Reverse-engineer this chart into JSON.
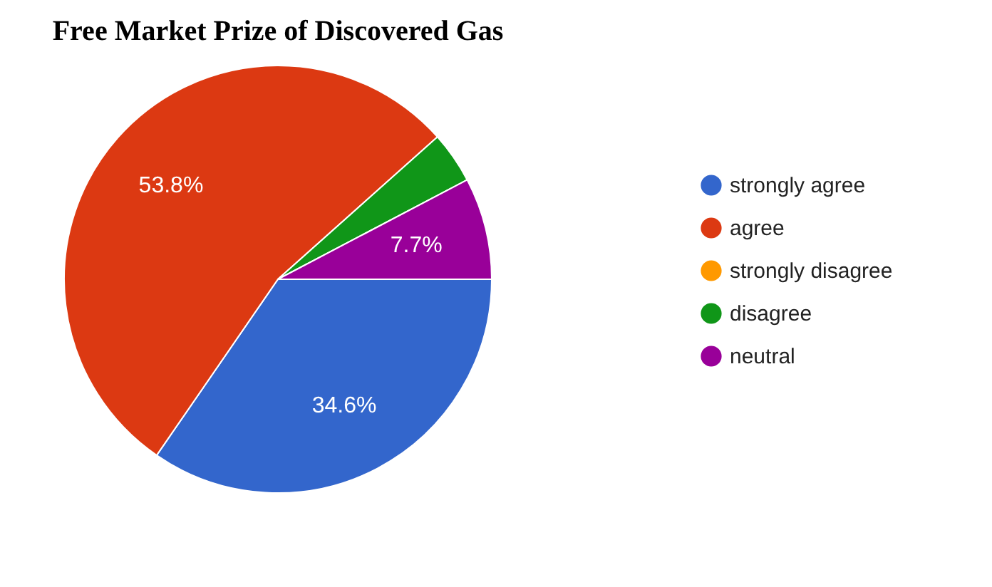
{
  "chart_data": {
    "type": "pie",
    "title": "Free Market Prize of Discovered Gas",
    "categories": [
      "strongly agree",
      "agree",
      "strongly disagree",
      "disagree",
      "neutral"
    ],
    "values": [
      34.6,
      53.8,
      0,
      3.9,
      7.7
    ],
    "colors": [
      "#3366cc",
      "#dc3912",
      "#ff9900",
      "#109618",
      "#990099"
    ],
    "value_labels": [
      "34.6%",
      "53.8%",
      null,
      null,
      "7.7%"
    ],
    "legend": "right"
  }
}
